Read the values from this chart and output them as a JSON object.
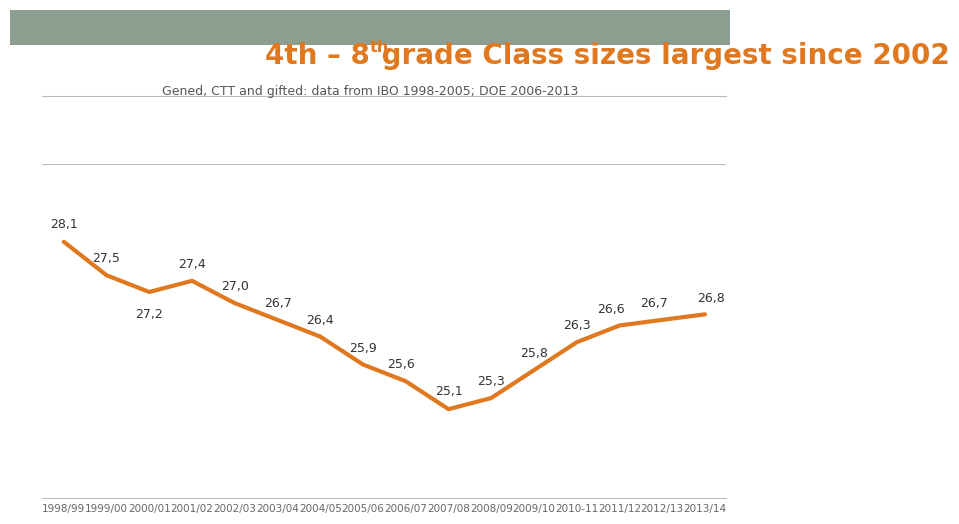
{
  "title_part1": "4th – 8",
  "title_super": "th",
  "title_part2": " grade Class sizes largest since 2002",
  "subtitle": "Gened, CTT and gifted: data from IBO 1998-2005; DOE 2006-2013",
  "x_labels": [
    "1998/99",
    "1999/00",
    "2000/01",
    "2001/02",
    "2002/03",
    "2003/04",
    "2004/05",
    "2005/06",
    "2006/07",
    "2007/08",
    "2008/09",
    "2009/10",
    "2010-11",
    "2011/12",
    "2012/13",
    "2013/14"
  ],
  "y_values": [
    28.1,
    27.5,
    27.2,
    27.4,
    27.0,
    26.7,
    26.4,
    25.9,
    25.6,
    25.1,
    25.3,
    25.8,
    26.3,
    26.6,
    26.7,
    26.8
  ],
  "line_color": "#E07820",
  "background_top": "#8B9E90",
  "background_main": "#FFFFFF",
  "grid_color": "#BBBBBB",
  "title_color": "#E07820",
  "subtitle_color": "#555555",
  "label_color": "#333333",
  "tick_color": "#666666",
  "ylim_min": 23.5,
  "ylim_max": 29.5,
  "line_width": 3.0,
  "title_fontsize": 20,
  "subtitle_fontsize": 9,
  "label_fontsize": 9,
  "tick_fontsize": 7.5
}
